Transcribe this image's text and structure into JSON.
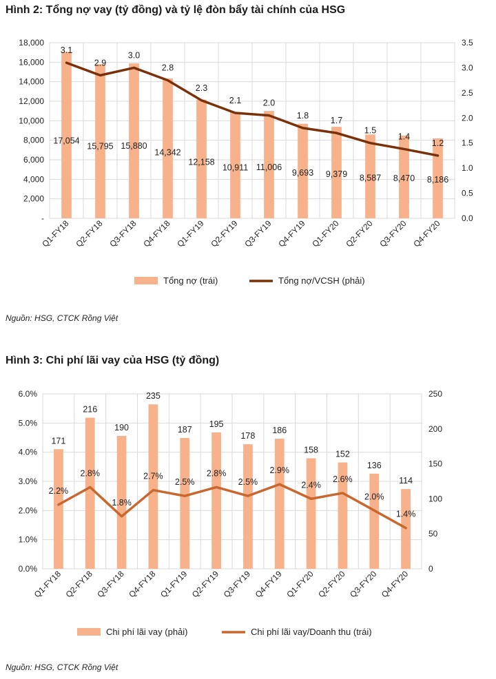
{
  "figure2": {
    "title": "Hình 2: Tổng nợ vay (tỷ đồng) và tỷ lệ đòn bẩy tài chính của HSG",
    "source": "Nguồn: HSG, CTCK Rồng Việt"
  },
  "figure3": {
    "title": "Hình 3: Chi phí lãi vay của HSG (tỷ đồng)",
    "source": "Nguồn: HSG, CTCK Rồng Việt"
  },
  "colors": {
    "bar": "#f7b18b",
    "line2": "#7a3109",
    "line3": "#c8672e",
    "grid": "#d9d9d9"
  },
  "chart_data": [
    {
      "type": "bar",
      "categories": [
        "Q1-FY18",
        "Q2-FY18",
        "Q3-FY18",
        "Q4-FY18",
        "Q1-FY19",
        "Q2-FY19",
        "Q3-FY19",
        "Q4-FY19",
        "Q1-FY20",
        "Q2-FY20",
        "Q3-FY20",
        "Q4-FY20"
      ],
      "series": [
        {
          "name": "Tổng nợ (trái)",
          "type": "bar",
          "axis": "left",
          "values": [
            17054,
            15795,
            15880,
            14342,
            12158,
            10911,
            11006,
            9693,
            9379,
            8587,
            8470,
            8186
          ],
          "labels": [
            "17,054",
            "15,795",
            "15,880",
            "14,342",
            "12,158",
            "10,911",
            "11,006",
            "9,693",
            "9,379",
            "8,587",
            "8,470",
            "8,186"
          ]
        },
        {
          "name": "Tổng nợ/VCSH (phải)",
          "type": "line",
          "axis": "right",
          "values": [
            3.1,
            2.85,
            3.0,
            2.75,
            2.35,
            2.1,
            2.05,
            1.8,
            1.7,
            1.5,
            1.38,
            1.25
          ],
          "labels": [
            "3.1",
            "2.9",
            "3.0",
            "2.8",
            "2.3",
            "2.1",
            "2.0",
            "1.8",
            "1.7",
            "1.5",
            "1.4",
            "1.2"
          ]
        }
      ],
      "y_left": {
        "ylim": [
          0,
          18000
        ],
        "ticks": [
          "-",
          "2,000",
          "4,000",
          "6,000",
          "8,000",
          "10,000",
          "12,000",
          "14,000",
          "16,000",
          "18,000"
        ]
      },
      "y_right": {
        "ylim": [
          0,
          3.5
        ],
        "ticks": [
          "0.0",
          "0.5",
          "1.0",
          "1.5",
          "2.0",
          "2.5",
          "3.0",
          "3.5"
        ]
      },
      "grid": true,
      "legend": "bottom"
    },
    {
      "type": "bar",
      "categories": [
        "Q1-FY18",
        "Q2-FY18",
        "Q3-FY18",
        "Q4-FY18",
        "Q1-FY19",
        "Q2-FY19",
        "Q3-FY19",
        "Q4-FY19",
        "Q1-FY20",
        "Q2-FY20",
        "Q3-FY20",
        "Q4-FY20"
      ],
      "series": [
        {
          "name": "Chi phí lãi vay (phải)",
          "type": "bar",
          "axis": "right",
          "values": [
            171,
            216,
            190,
            235,
            187,
            195,
            178,
            186,
            158,
            152,
            136,
            114
          ],
          "labels": [
            "171",
            "216",
            "190",
            "235",
            "187",
            "195",
            "178",
            "186",
            "158",
            "152",
            "136",
            "114"
          ]
        },
        {
          "name": "Chi phí lãi vay/Doanh thu (trái)",
          "type": "line",
          "axis": "left",
          "values": [
            2.2,
            2.8,
            1.8,
            2.7,
            2.5,
            2.8,
            2.5,
            2.9,
            2.4,
            2.6,
            2.0,
            1.4
          ],
          "labels": [
            "2.2%",
            "2.8%",
            "1.8%",
            "2.7%",
            "2.5%",
            "2.8%",
            "2.5%",
            "2.9%",
            "2.4%",
            "2.6%",
            "2.0%",
            "1.4%"
          ]
        }
      ],
      "y_left": {
        "ylim": [
          0,
          6
        ],
        "ticks": [
          "0.0%",
          "1.0%",
          "2.0%",
          "3.0%",
          "4.0%",
          "5.0%",
          "6.0%"
        ]
      },
      "y_right": {
        "ylim": [
          0,
          250
        ],
        "ticks": [
          "0",
          "50",
          "100",
          "150",
          "200",
          "250"
        ]
      },
      "grid": true,
      "legend": "bottom"
    }
  ]
}
